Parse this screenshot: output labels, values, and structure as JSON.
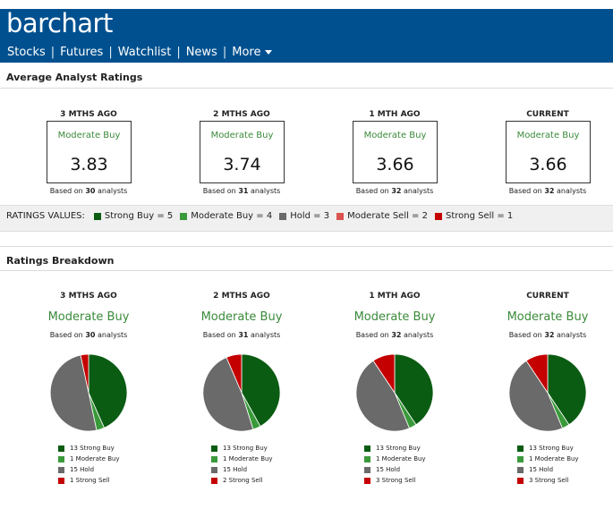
{
  "header": {
    "logo": "barchart",
    "nav": [
      {
        "label": "Stocks"
      },
      {
        "label": "Futures"
      },
      {
        "label": "Watchlist"
      },
      {
        "label": "News"
      },
      {
        "label": "More"
      }
    ]
  },
  "average": {
    "title": "Average Analyst Ratings",
    "columns": [
      {
        "period": "3 MTHS AGO",
        "rating": "Moderate Buy",
        "score": "3.83",
        "based_prefix": "Based on",
        "count": "30",
        "based_suffix": "analysts"
      },
      {
        "period": "2 MTHS AGO",
        "rating": "Moderate Buy",
        "score": "3.74",
        "based_prefix": "Based on",
        "count": "31",
        "based_suffix": "analysts"
      },
      {
        "period": "1 MTH AGO",
        "rating": "Moderate Buy",
        "score": "3.66",
        "based_prefix": "Based on",
        "count": "32",
        "based_suffix": "analysts"
      },
      {
        "period": "CURRENT",
        "rating": "Moderate Buy",
        "score": "3.66",
        "based_prefix": "Based on",
        "count": "32",
        "based_suffix": "analysts"
      }
    ]
  },
  "ratings_values": {
    "label": "RATINGS VALUES:",
    "items": [
      {
        "text": "Strong Buy =  5",
        "color": "#0a5c12"
      },
      {
        "text": "Moderate Buy =  4",
        "color": "#3a9a3a"
      },
      {
        "text": "Hold =  3",
        "color": "#6a6a6a"
      },
      {
        "text": "Moderate Sell =  2",
        "color": "#d9534f"
      },
      {
        "text": "Strong Sell =  1",
        "color": "#c40000"
      }
    ]
  },
  "breakdown": {
    "title": "Ratings Breakdown",
    "colors": {
      "strong_buy": "#0a5c12",
      "moderate_buy": "#3a9a3a",
      "hold": "#6a6a6a",
      "strong_sell": "#c40000"
    },
    "columns": [
      {
        "period": "3 MTHS AGO",
        "rating": "Moderate Buy",
        "based_prefix": "Based on",
        "count": "30",
        "based_suffix": "analysts",
        "slices": [
          {
            "key": "strong_buy",
            "value": 13,
            "label": "13 Strong Buy"
          },
          {
            "key": "moderate_buy",
            "value": 1,
            "label": "1 Moderate Buy"
          },
          {
            "key": "hold",
            "value": 15,
            "label": "15 Hold"
          },
          {
            "key": "strong_sell",
            "value": 1,
            "label": "1 Strong Sell"
          }
        ]
      },
      {
        "period": "2 MTHS AGO",
        "rating": "Moderate Buy",
        "based_prefix": "Based on",
        "count": "31",
        "based_suffix": "analysts",
        "slices": [
          {
            "key": "strong_buy",
            "value": 13,
            "label": "13 Strong Buy"
          },
          {
            "key": "moderate_buy",
            "value": 1,
            "label": "1 Moderate Buy"
          },
          {
            "key": "hold",
            "value": 15,
            "label": "15 Hold"
          },
          {
            "key": "strong_sell",
            "value": 2,
            "label": "2 Strong Sell"
          }
        ]
      },
      {
        "period": "1 MTH AGO",
        "rating": "Moderate Buy",
        "based_prefix": "Based on",
        "count": "32",
        "based_suffix": "analysts",
        "slices": [
          {
            "key": "strong_buy",
            "value": 13,
            "label": "13 Strong Buy"
          },
          {
            "key": "moderate_buy",
            "value": 1,
            "label": "1 Moderate Buy"
          },
          {
            "key": "hold",
            "value": 15,
            "label": "15 Hold"
          },
          {
            "key": "strong_sell",
            "value": 3,
            "label": "3 Strong Sell"
          }
        ]
      },
      {
        "period": "CURRENT",
        "rating": "Moderate Buy",
        "based_prefix": "Based on",
        "count": "32",
        "based_suffix": "analysts",
        "slices": [
          {
            "key": "strong_buy",
            "value": 13,
            "label": "13 Strong Buy"
          },
          {
            "key": "moderate_buy",
            "value": 1,
            "label": "1 Moderate Buy"
          },
          {
            "key": "hold",
            "value": 15,
            "label": "15 Hold"
          },
          {
            "key": "strong_sell",
            "value": 3,
            "label": "3 Strong Sell"
          }
        ]
      }
    ]
  },
  "chart_data": [
    {
      "type": "pie",
      "title": "3 MTHS AGO",
      "categories": [
        "Strong Buy",
        "Moderate Buy",
        "Hold",
        "Strong Sell"
      ],
      "values": [
        13,
        1,
        15,
        1
      ]
    },
    {
      "type": "pie",
      "title": "2 MTHS AGO",
      "categories": [
        "Strong Buy",
        "Moderate Buy",
        "Hold",
        "Strong Sell"
      ],
      "values": [
        13,
        1,
        15,
        2
      ]
    },
    {
      "type": "pie",
      "title": "1 MTH AGO",
      "categories": [
        "Strong Buy",
        "Moderate Buy",
        "Hold",
        "Strong Sell"
      ],
      "values": [
        13,
        1,
        15,
        3
      ]
    },
    {
      "type": "pie",
      "title": "CURRENT",
      "categories": [
        "Strong Buy",
        "Moderate Buy",
        "Hold",
        "Strong Sell"
      ],
      "values": [
        13,
        1,
        15,
        3
      ]
    }
  ]
}
